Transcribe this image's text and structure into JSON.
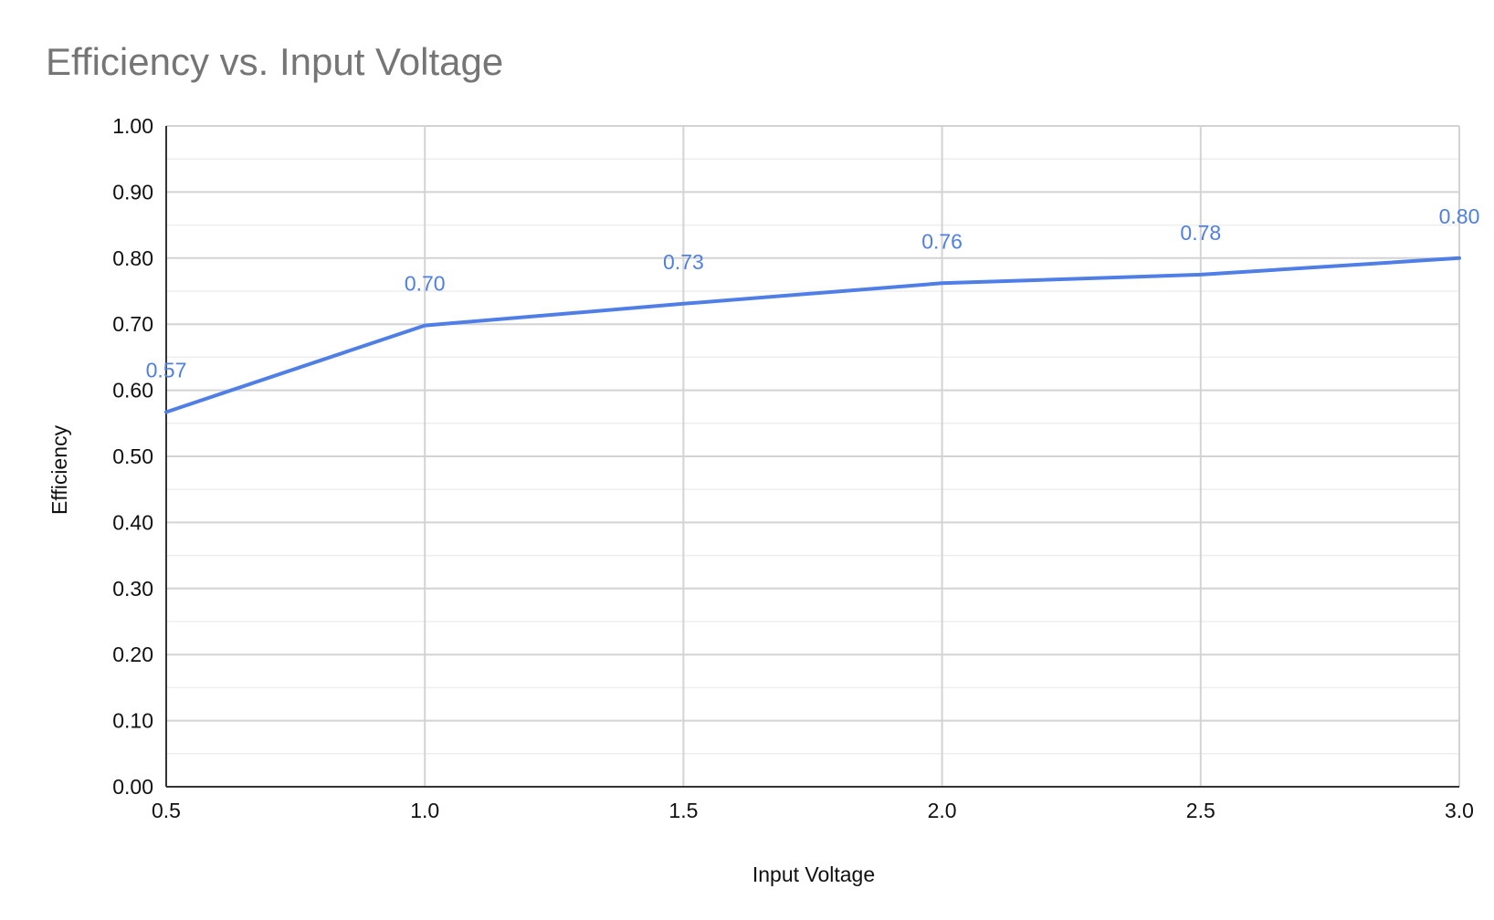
{
  "chart_data": {
    "type": "line",
    "title": "Efficiency vs. Input Voltage",
    "xlabel": "Input Voltage",
    "ylabel": "Efficiency",
    "x": [
      0.5,
      1.0,
      1.5,
      2.0,
      2.5,
      3.0
    ],
    "xlim": [
      0.5,
      3.0
    ],
    "ylim": [
      0.0,
      1.0
    ],
    "x_ticks": [
      "0.5",
      "1.0",
      "1.5",
      "2.0",
      "2.5",
      "3.0"
    ],
    "y_ticks": [
      "0.00",
      "0.10",
      "0.20",
      "0.30",
      "0.40",
      "0.50",
      "0.60",
      "0.70",
      "0.80",
      "0.90",
      "1.00"
    ],
    "series": [
      {
        "values": [
          0.567,
          0.698,
          0.731,
          0.762,
          0.775,
          0.8
        ],
        "data_labels": [
          "0.57",
          "0.70",
          "0.73",
          "0.76",
          "0.78",
          "0.80"
        ],
        "color": "#4f7fe6"
      }
    ],
    "grid": true,
    "minor_grid": true,
    "legend": "none"
  }
}
